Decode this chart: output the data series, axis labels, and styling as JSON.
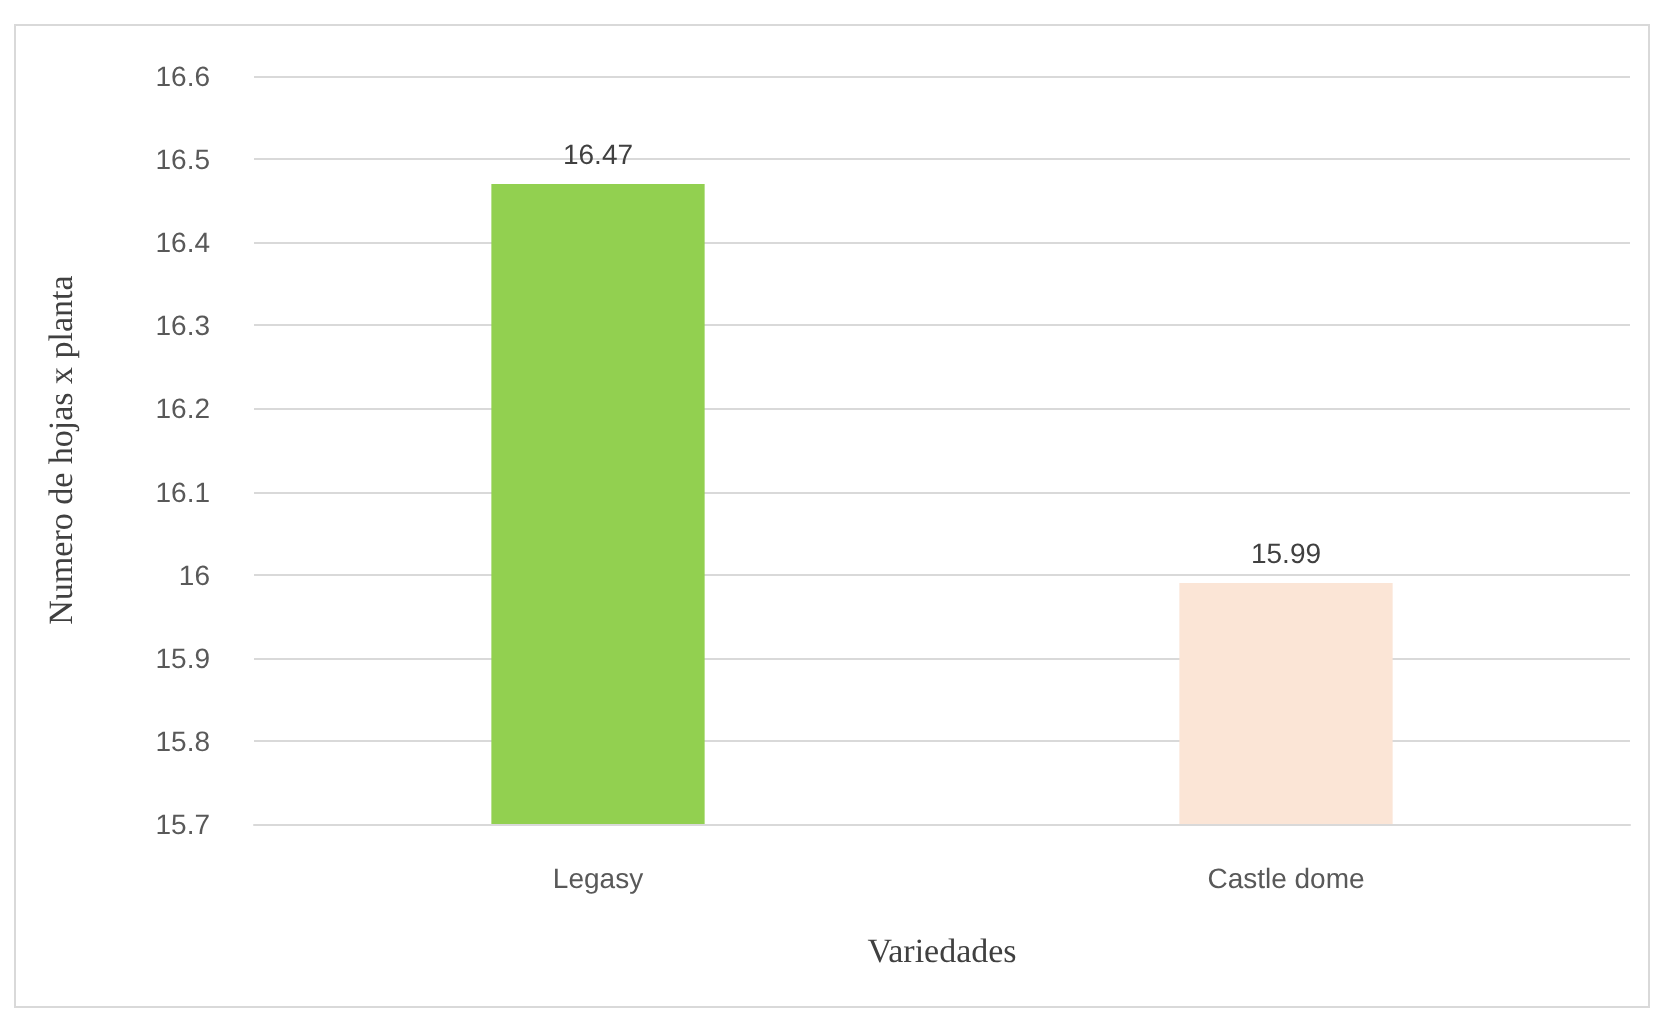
{
  "chart_data": {
    "type": "bar",
    "xlabel": "Variedades",
    "ylabel": "Numero de hojas x planta",
    "categories": [
      "Legasy",
      "Castle dome"
    ],
    "values": [
      16.47,
      15.99
    ],
    "colors": [
      "#92d050",
      "#fbe5d6"
    ],
    "ylim": [
      15.7,
      16.6
    ],
    "yticks": [
      15.7,
      15.8,
      15.9,
      16,
      16.1,
      16.2,
      16.3,
      16.4,
      16.5,
      16.6
    ],
    "grid": "y",
    "data_labels": true
  }
}
